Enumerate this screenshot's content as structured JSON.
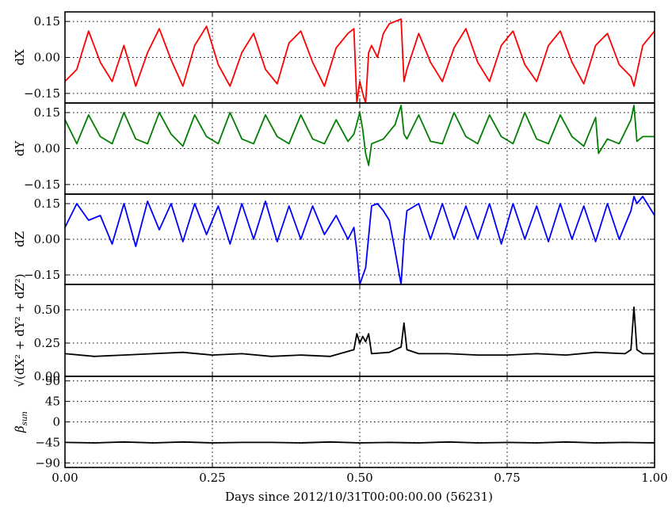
{
  "chart_data": {
    "type": "line",
    "x_label": "Days since 2012/10/31T00:00:00.00 (56231)",
    "x_range": [
      0.0,
      1.0
    ],
    "x_ticks": [
      "0.00",
      "0.25",
      "0.50",
      "0.75",
      "1.00"
    ],
    "panels": [
      {
        "id": "dx",
        "ylabel": "dX",
        "ylim": [
          -0.19,
          0.19
        ],
        "yticks": [
          0.15,
          0.0,
          -0.15
        ],
        "ytick_labels": [
          "0.15",
          "0.00",
          "−0.15"
        ],
        "color": "#ff0000",
        "x": [
          0.0,
          0.02,
          0.04,
          0.06,
          0.08,
          0.1,
          0.12,
          0.14,
          0.16,
          0.18,
          0.2,
          0.22,
          0.24,
          0.26,
          0.28,
          0.3,
          0.32,
          0.34,
          0.36,
          0.38,
          0.4,
          0.42,
          0.44,
          0.46,
          0.48,
          0.49,
          0.495,
          0.5,
          0.505,
          0.51,
          0.515,
          0.52,
          0.53,
          0.54,
          0.55,
          0.56,
          0.57,
          0.575,
          0.58,
          0.6,
          0.62,
          0.64,
          0.66,
          0.68,
          0.7,
          0.72,
          0.74,
          0.76,
          0.78,
          0.8,
          0.82,
          0.84,
          0.86,
          0.88,
          0.9,
          0.92,
          0.94,
          0.96,
          0.965,
          0.98,
          1.0
        ],
        "y": [
          -0.1,
          -0.05,
          0.11,
          -0.02,
          -0.1,
          0.05,
          -0.12,
          0.02,
          0.12,
          -0.01,
          -0.12,
          0.05,
          0.13,
          -0.03,
          -0.12,
          0.02,
          0.1,
          -0.05,
          -0.11,
          0.06,
          0.11,
          -0.02,
          -0.12,
          0.04,
          0.1,
          0.12,
          -0.19,
          -0.1,
          -0.15,
          -0.19,
          0.02,
          0.05,
          0.0,
          0.1,
          0.14,
          0.15,
          0.16,
          -0.1,
          -0.05,
          0.1,
          -0.02,
          -0.1,
          0.04,
          0.12,
          -0.02,
          -0.1,
          0.05,
          0.11,
          -0.03,
          -0.1,
          0.05,
          0.11,
          -0.02,
          -0.11,
          0.05,
          0.1,
          -0.03,
          -0.08,
          -0.12,
          0.05,
          0.11
        ]
      },
      {
        "id": "dy",
        "ylabel": "dY",
        "ylim": [
          -0.19,
          0.19
        ],
        "yticks": [
          0.15,
          0.0,
          -0.15
        ],
        "ytick_labels": [
          "0.15",
          "0.00",
          "−0.15"
        ],
        "color": "#007f00",
        "x": [
          0.0,
          0.02,
          0.04,
          0.06,
          0.08,
          0.1,
          0.12,
          0.14,
          0.16,
          0.18,
          0.2,
          0.22,
          0.24,
          0.26,
          0.28,
          0.3,
          0.32,
          0.34,
          0.36,
          0.38,
          0.4,
          0.42,
          0.44,
          0.46,
          0.48,
          0.49,
          0.5,
          0.505,
          0.51,
          0.515,
          0.52,
          0.54,
          0.56,
          0.57,
          0.575,
          0.58,
          0.6,
          0.62,
          0.64,
          0.66,
          0.68,
          0.7,
          0.72,
          0.74,
          0.76,
          0.78,
          0.8,
          0.82,
          0.84,
          0.86,
          0.88,
          0.9,
          0.905,
          0.92,
          0.94,
          0.96,
          0.965,
          0.97,
          0.98,
          1.0
        ],
        "y": [
          0.12,
          0.02,
          0.14,
          0.05,
          0.02,
          0.15,
          0.04,
          0.02,
          0.15,
          0.06,
          0.01,
          0.14,
          0.05,
          0.02,
          0.15,
          0.04,
          0.02,
          0.14,
          0.05,
          0.02,
          0.14,
          0.04,
          0.02,
          0.12,
          0.03,
          0.06,
          0.15,
          0.08,
          -0.02,
          -0.07,
          0.02,
          0.04,
          0.1,
          0.18,
          0.06,
          0.04,
          0.14,
          0.03,
          0.02,
          0.15,
          0.05,
          0.02,
          0.14,
          0.05,
          0.02,
          0.15,
          0.04,
          0.02,
          0.14,
          0.05,
          0.01,
          0.13,
          -0.02,
          0.04,
          0.02,
          0.12,
          0.18,
          0.03,
          0.05,
          0.05
        ]
      },
      {
        "id": "dz",
        "ylabel": "dZ",
        "ylim": [
          -0.19,
          0.19
        ],
        "yticks": [
          0.15,
          0.0,
          -0.15
        ],
        "ytick_labels": [
          "0.15",
          "0.00",
          "−0.15"
        ],
        "color": "#0000ff",
        "x": [
          0.0,
          0.02,
          0.04,
          0.06,
          0.08,
          0.1,
          0.12,
          0.14,
          0.16,
          0.18,
          0.2,
          0.22,
          0.24,
          0.26,
          0.28,
          0.3,
          0.32,
          0.34,
          0.36,
          0.38,
          0.4,
          0.42,
          0.44,
          0.46,
          0.48,
          0.49,
          0.495,
          0.5,
          0.51,
          0.52,
          0.53,
          0.54,
          0.55,
          0.56,
          0.57,
          0.575,
          0.58,
          0.6,
          0.62,
          0.64,
          0.66,
          0.68,
          0.7,
          0.72,
          0.74,
          0.76,
          0.78,
          0.8,
          0.82,
          0.84,
          0.86,
          0.88,
          0.9,
          0.92,
          0.94,
          0.96,
          0.965,
          0.97,
          0.98,
          1.0
        ],
        "y": [
          0.05,
          0.15,
          0.08,
          0.1,
          -0.02,
          0.15,
          -0.03,
          0.16,
          0.04,
          0.15,
          -0.01,
          0.15,
          0.02,
          0.14,
          -0.02,
          0.15,
          0.0,
          0.16,
          -0.01,
          0.14,
          0.0,
          0.14,
          0.02,
          0.1,
          0.0,
          0.05,
          -0.05,
          -0.19,
          -0.12,
          0.14,
          0.15,
          0.12,
          0.08,
          -0.05,
          -0.19,
          0.0,
          0.12,
          0.15,
          0.0,
          0.15,
          0.0,
          0.14,
          0.0,
          0.15,
          -0.02,
          0.15,
          0.0,
          0.14,
          -0.01,
          0.15,
          0.0,
          0.14,
          -0.01,
          0.15,
          0.0,
          0.12,
          0.18,
          0.15,
          0.18,
          0.1
        ]
      },
      {
        "id": "magnitude",
        "ylabel": "√(dX² + dY² + dZ²)",
        "ylim": [
          0.0,
          0.69
        ],
        "yticks": [
          0.5,
          0.25,
          0.0
        ],
        "ytick_labels": [
          "0.50",
          "0.25",
          "0.00"
        ],
        "color": "#000000",
        "x": [
          0.0,
          0.05,
          0.1,
          0.15,
          0.2,
          0.25,
          0.3,
          0.35,
          0.4,
          0.45,
          0.49,
          0.495,
          0.5,
          0.505,
          0.51,
          0.515,
          0.52,
          0.55,
          0.57,
          0.575,
          0.58,
          0.6,
          0.65,
          0.7,
          0.75,
          0.8,
          0.85,
          0.9,
          0.95,
          0.96,
          0.965,
          0.97,
          0.98,
          1.0
        ],
        "y": [
          0.17,
          0.15,
          0.16,
          0.17,
          0.18,
          0.16,
          0.17,
          0.15,
          0.16,
          0.15,
          0.2,
          0.32,
          0.25,
          0.3,
          0.26,
          0.32,
          0.17,
          0.18,
          0.22,
          0.4,
          0.2,
          0.17,
          0.17,
          0.16,
          0.16,
          0.17,
          0.16,
          0.18,
          0.17,
          0.2,
          0.52,
          0.2,
          0.17,
          0.17
        ]
      },
      {
        "id": "beta_sun",
        "ylabel": "β sun",
        "ylim": [
          -100,
          100
        ],
        "yticks": [
          90,
          45,
          0,
          -45,
          -90
        ],
        "ytick_labels": [
          "90",
          "45",
          "0",
          "−45",
          "−90"
        ],
        "color": "#000000",
        "x": [
          0.0,
          0.05,
          0.1,
          0.15,
          0.2,
          0.25,
          0.3,
          0.35,
          0.4,
          0.45,
          0.5,
          0.55,
          0.6,
          0.65,
          0.7,
          0.75,
          0.8,
          0.85,
          0.9,
          0.95,
          1.0
        ],
        "y": [
          -45,
          -46,
          -44,
          -46,
          -44,
          -46,
          -45,
          -45,
          -46,
          -44,
          -46,
          -45,
          -46,
          -44,
          -46,
          -45,
          -46,
          -44,
          -46,
          -45,
          -46
        ]
      }
    ]
  }
}
